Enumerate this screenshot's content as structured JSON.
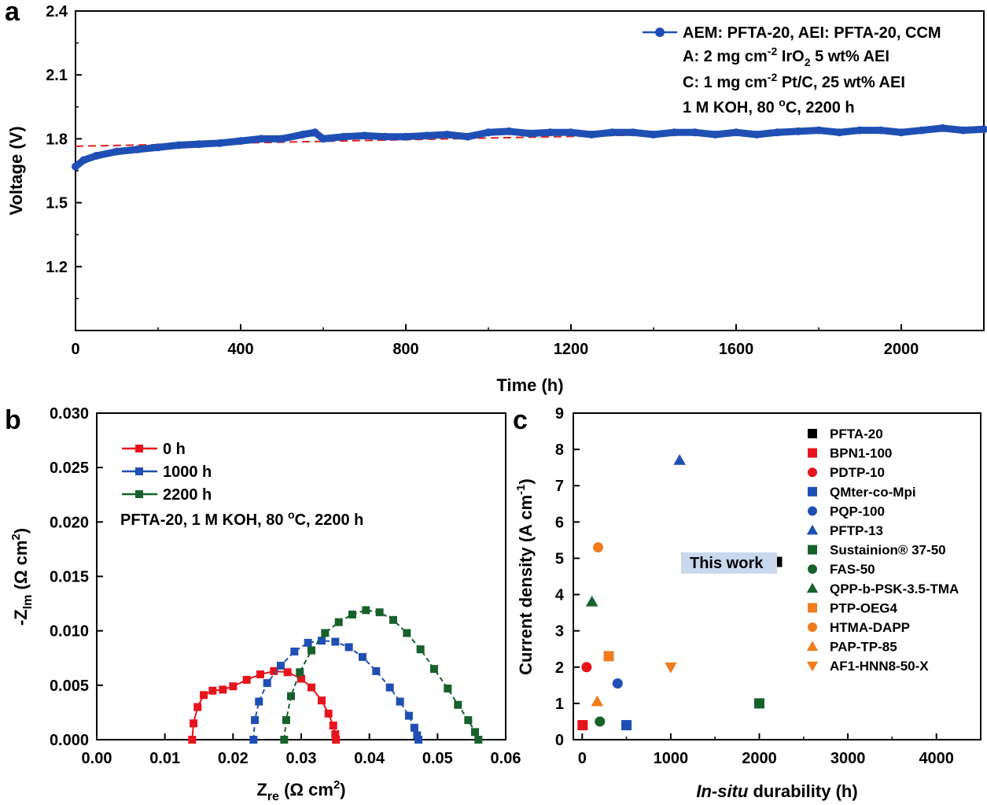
{
  "chart_data": [
    {
      "panel": "a",
      "type": "line",
      "xlabel": "Time (h)",
      "ylabel": "Voltage (V)",
      "xlim": [
        0,
        2200
      ],
      "ylim": [
        0.9,
        2.4
      ],
      "xticks": [
        "0",
        "400",
        "800",
        "1200",
        "1600",
        "2000"
      ],
      "yticks": [
        "1.2",
        "1.5",
        "1.8",
        "2.1",
        "2.4"
      ],
      "series": [
        {
          "name": "AEM: PFTA-20, AEI: PFTA-20, CCM",
          "color": "#1f4fb4",
          "x": [
            0,
            20,
            50,
            100,
            150,
            200,
            250,
            300,
            350,
            400,
            450,
            500,
            550,
            580,
            600,
            650,
            700,
            750,
            800,
            850,
            900,
            950,
            1000,
            1050,
            1100,
            1150,
            1200,
            1250,
            1300,
            1350,
            1400,
            1450,
            1500,
            1550,
            1600,
            1650,
            1700,
            1750,
            1800,
            1850,
            1900,
            1950,
            2000,
            2050,
            2100,
            2150,
            2200
          ],
          "y": [
            1.67,
            1.7,
            1.72,
            1.74,
            1.75,
            1.76,
            1.77,
            1.775,
            1.78,
            1.79,
            1.8,
            1.8,
            1.82,
            1.83,
            1.8,
            1.81,
            1.815,
            1.81,
            1.81,
            1.815,
            1.82,
            1.81,
            1.83,
            1.835,
            1.825,
            1.83,
            1.83,
            1.82,
            1.83,
            1.83,
            1.82,
            1.83,
            1.83,
            1.82,
            1.83,
            1.82,
            1.83,
            1.835,
            1.84,
            1.83,
            1.84,
            1.84,
            1.83,
            1.84,
            1.85,
            1.84,
            1.845
          ]
        }
      ],
      "fit_line": {
        "color": "#e02020",
        "x": [
          0,
          2200
        ],
        "y": [
          1.765,
          1.85
        ]
      },
      "annotation_lines": [
        {
          "main": "A: 2 mg cm",
          "sup": "-2",
          "tail": " IrO",
          "sub": "2",
          "rest": " 5 wt% AEI"
        },
        {
          "main": "C: 1 mg cm",
          "sup": "-2",
          "tail": " Pt/C, 25 wt% AEI"
        },
        {
          "main": "1 M KOH, 80 ",
          "sup": "o",
          "tail": "C, 2200 h"
        }
      ]
    },
    {
      "panel": "b",
      "type": "line",
      "xlabel_main": "Z",
      "xlabel_sub": "re",
      "xlabel_rest": " (Ω cm",
      "xlabel_sup": "2",
      "xlabel_end": ")",
      "ylabel_main": "-Z",
      "ylabel_sub": "Im",
      "ylabel_rest": " (Ω cm",
      "ylabel_sup": "2",
      "ylabel_end": ")",
      "xlim": [
        0.0,
        0.06
      ],
      "ylim": [
        0.0,
        0.03
      ],
      "xticks": [
        "0.00",
        "0.01",
        "0.02",
        "0.03",
        "0.04",
        "0.05",
        "0.06"
      ],
      "yticks": [
        "0.000",
        "0.005",
        "0.010",
        "0.015",
        "0.020",
        "0.025",
        "0.030"
      ],
      "note": {
        "main": "PFTA-20, 1 M KOH, 80 ",
        "sup": "o",
        "tail": "C, 2200 h"
      },
      "series": [
        {
          "name": "0 h",
          "color": "#e8141b",
          "x": [
            0.014,
            0.0142,
            0.0148,
            0.0157,
            0.017,
            0.0185,
            0.02,
            0.022,
            0.024,
            0.026,
            0.028,
            0.03,
            0.0315,
            0.033,
            0.034,
            0.0347,
            0.035,
            0.0351
          ],
          "y": [
            0.0,
            0.0015,
            0.003,
            0.0041,
            0.0045,
            0.0046,
            0.0049,
            0.0055,
            0.006,
            0.0063,
            0.0062,
            0.0056,
            0.0048,
            0.0036,
            0.0024,
            0.0013,
            0.0005,
            0.0
          ]
        },
        {
          "name": "1000 h",
          "color": "#1f4fb4",
          "x": [
            0.023,
            0.0232,
            0.0238,
            0.025,
            0.027,
            0.029,
            0.031,
            0.033,
            0.035,
            0.037,
            0.039,
            0.041,
            0.043,
            0.0445,
            0.0458,
            0.0466,
            0.047,
            0.0472
          ],
          "y": [
            0.0,
            0.0018,
            0.0035,
            0.0052,
            0.0068,
            0.0081,
            0.0089,
            0.0091,
            0.009,
            0.0085,
            0.0076,
            0.0063,
            0.0048,
            0.0035,
            0.0022,
            0.0011,
            0.0004,
            0.0
          ]
        },
        {
          "name": "2200 h",
          "color": "#17612b",
          "x": [
            0.0275,
            0.0278,
            0.0285,
            0.0298,
            0.0315,
            0.0335,
            0.0355,
            0.0375,
            0.0395,
            0.0415,
            0.0435,
            0.0455,
            0.0475,
            0.0495,
            0.0515,
            0.053,
            0.0545,
            0.0555,
            0.056
          ],
          "y": [
            0.0,
            0.0018,
            0.004,
            0.0062,
            0.0082,
            0.0098,
            0.0108,
            0.0115,
            0.0119,
            0.0117,
            0.011,
            0.0098,
            0.0083,
            0.0065,
            0.0047,
            0.0032,
            0.0018,
            0.0007,
            0.0
          ]
        }
      ]
    },
    {
      "panel": "c",
      "type": "scatter",
      "xlabel_italic": "In-situ",
      "xlabel_rest": " durability (h)",
      "ylabel_main": "Current density (A cm",
      "ylabel_sup": "-1",
      "ylabel_end": ")",
      "xlim": [
        -100,
        4500
      ],
      "ylim": [
        0,
        9
      ],
      "xticks": [
        "0",
        "1000",
        "2000",
        "3000",
        "4000"
      ],
      "yticks": [
        "0",
        "1",
        "2",
        "3",
        "4",
        "5",
        "6",
        "7",
        "8",
        "9"
      ],
      "callout": "This work",
      "points": [
        {
          "name": "PFTA-20",
          "marker": "square",
          "color": "#000000",
          "x": 2200,
          "y": 4.9
        },
        {
          "name": "BPN1-100",
          "marker": "square",
          "color": "#e8141b",
          "x": 5,
          "y": 0.4
        },
        {
          "name": "PDTP-10",
          "marker": "circle",
          "color": "#e8141b",
          "x": 50,
          "y": 2.0
        },
        {
          "name": "QMter-co-Mpi",
          "marker": "square",
          "color": "#1f4fb4",
          "x": 500,
          "y": 0.4
        },
        {
          "name": "PQP-100",
          "marker": "circle",
          "color": "#1f4fb4",
          "x": 400,
          "y": 1.55
        },
        {
          "name": "PFTP-13",
          "marker": "triangle-up",
          "color": "#1f4fb4",
          "x": 1100,
          "y": 7.7
        },
        {
          "name": "Sustainion® 37-50",
          "marker": "square",
          "color": "#17612b",
          "x": 2000,
          "y": 1.0
        },
        {
          "name": "FAS-50",
          "marker": "circle",
          "color": "#17612b",
          "x": 200,
          "y": 0.5
        },
        {
          "name": "QPP-b-PSK-3.5-TMA",
          "marker": "triangle-up",
          "color": "#17612b",
          "x": 110,
          "y": 3.8
        },
        {
          "name": "PTP-OEG4",
          "marker": "square",
          "color": "#f07c1e",
          "x": 300,
          "y": 2.3
        },
        {
          "name": "HTMA-DAPP",
          "marker": "circle",
          "color": "#f07c1e",
          "x": 180,
          "y": 5.3
        },
        {
          "name": "PAP-TP-85",
          "marker": "triangle-up",
          "color": "#f07c1e",
          "x": 170,
          "y": 1.05
        },
        {
          "name": "AF1-HNN8-50-X",
          "marker": "triangle-down",
          "color": "#f07c1e",
          "x": 1000,
          "y": 2.0
        }
      ]
    }
  ],
  "labels": {
    "a": "a",
    "b": "b",
    "c": "c"
  }
}
